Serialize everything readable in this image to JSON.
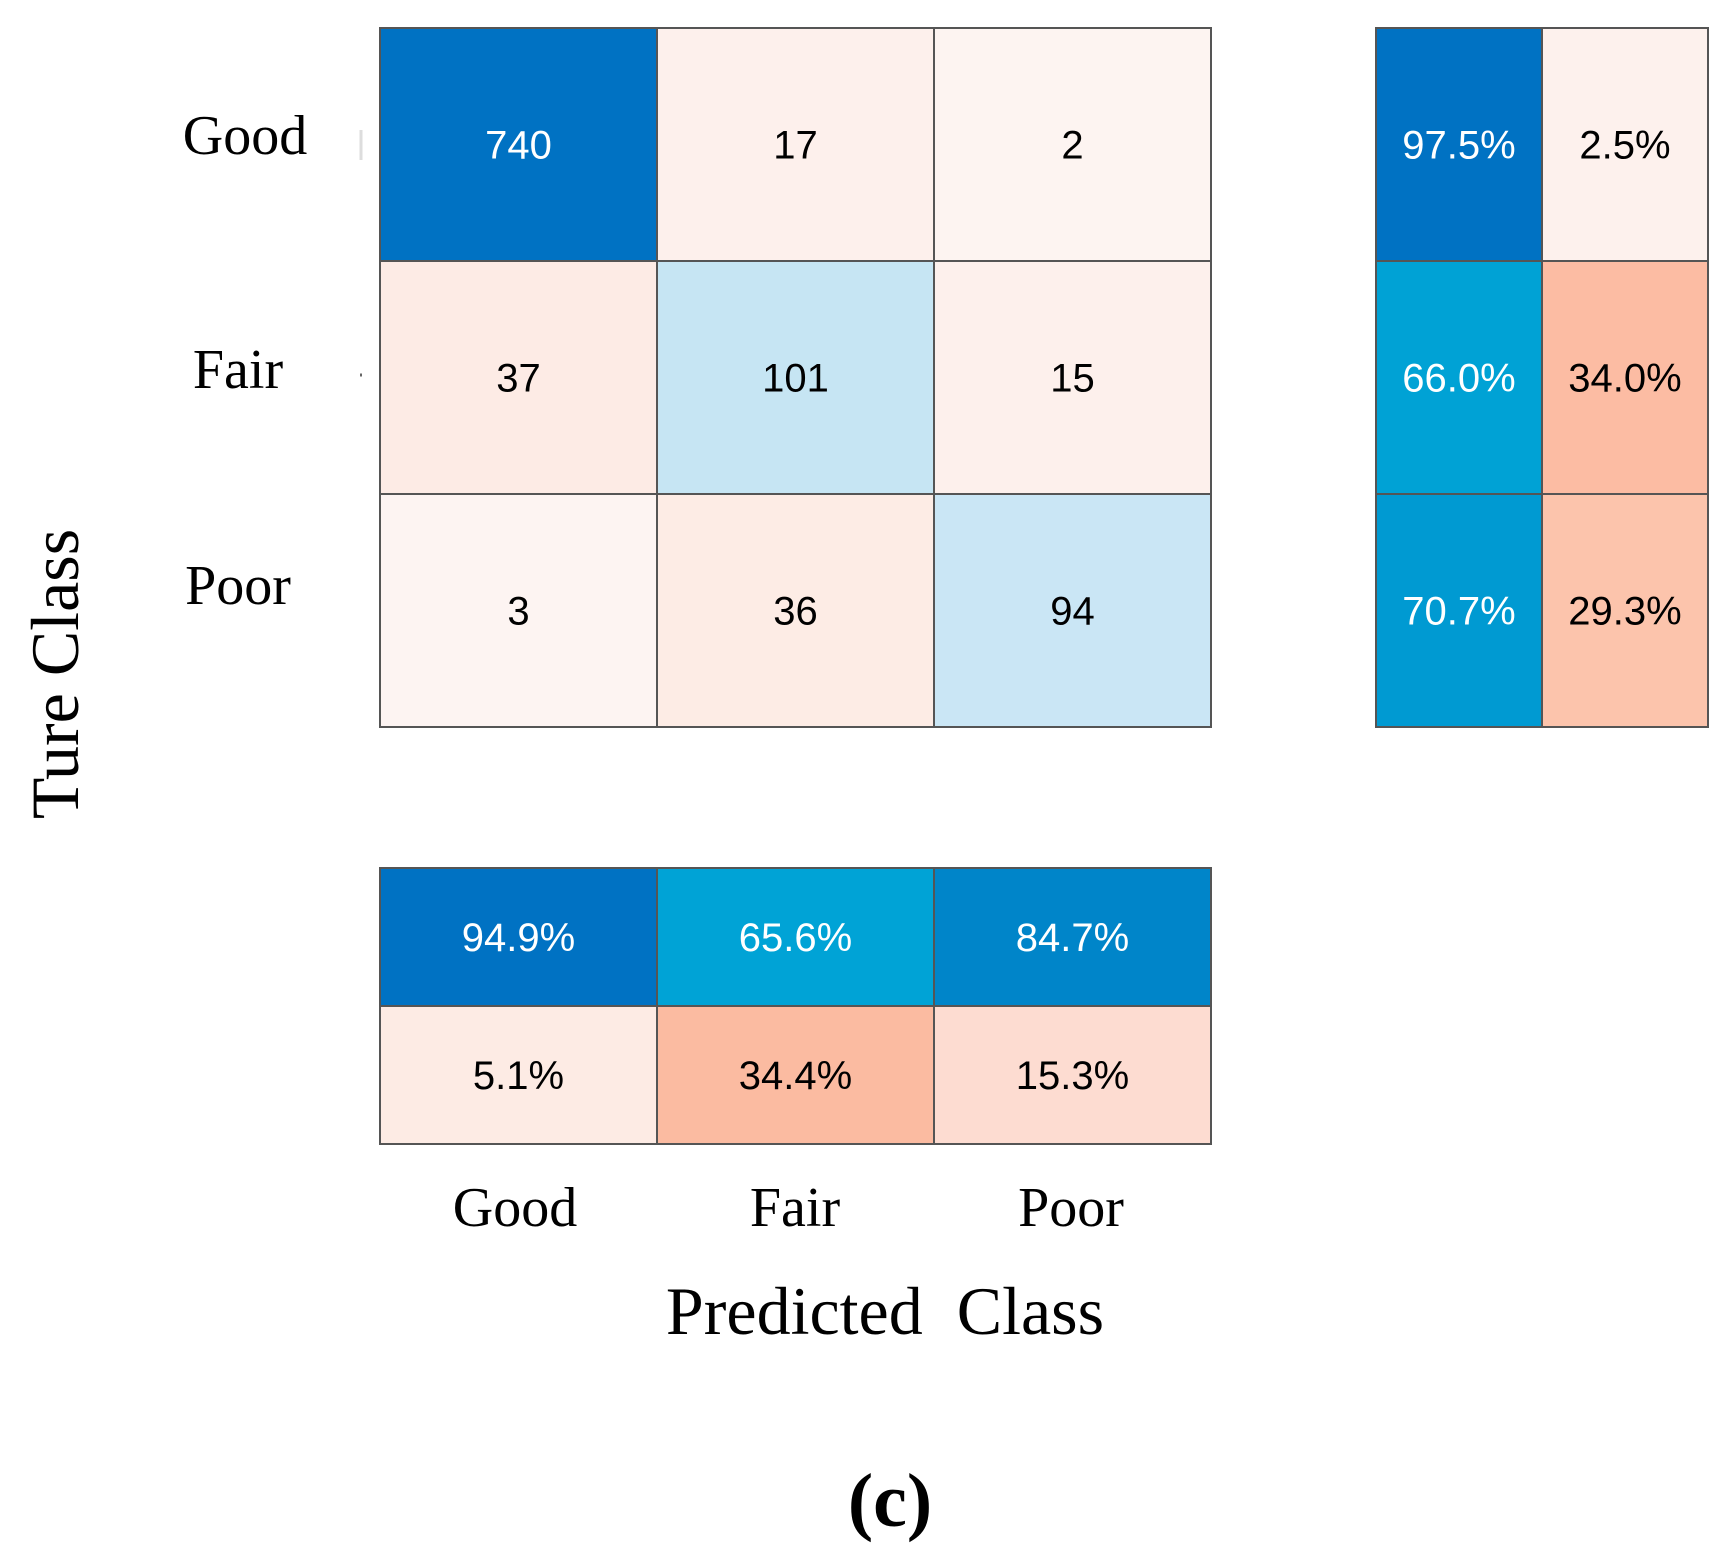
{
  "chart_data": {
    "type": "heatmap",
    "title": "",
    "xlabel": "Predicted  Class",
    "ylabel": "Ture Class",
    "panel_label": "(c)",
    "classes": [
      "Good",
      "Fair",
      "Poor"
    ],
    "matrix": [
      [
        740,
        17,
        2
      ],
      [
        37,
        101,
        15
      ],
      [
        3,
        36,
        94
      ]
    ],
    "row_summary": [
      [
        "97.5%",
        "2.5%"
      ],
      [
        "66.0%",
        "34.0%"
      ],
      [
        "70.7%",
        "29.3%"
      ]
    ],
    "column_summary": [
      [
        "94.9%",
        "65.6%",
        "84.7%"
      ],
      [
        "5.1%",
        "34.4%",
        "15.3%"
      ]
    ],
    "colors": {
      "matrix": [
        [
          "#0072c3",
          "#fdf0ec",
          "#fdf4f1"
        ],
        [
          "#fdebe5",
          "#c6e5f3",
          "#fdf0ec"
        ],
        [
          "#fdf4f2",
          "#fdece5",
          "#cae6f5"
        ]
      ],
      "row_summary": [
        [
          "#0072c3",
          "#fdf1ed"
        ],
        [
          "#00a2d5",
          "#fcbca3"
        ],
        [
          "#009ad2",
          "#fcc4ac"
        ]
      ],
      "column_summary": [
        [
          "#0072c3",
          "#00a3d6",
          "#0085c9"
        ],
        [
          "#fdebe4",
          "#fbbba1",
          "#fddcd1"
        ]
      ],
      "dark_text": "#000000",
      "light_text": "#ffffff",
      "border": "#555555"
    }
  }
}
